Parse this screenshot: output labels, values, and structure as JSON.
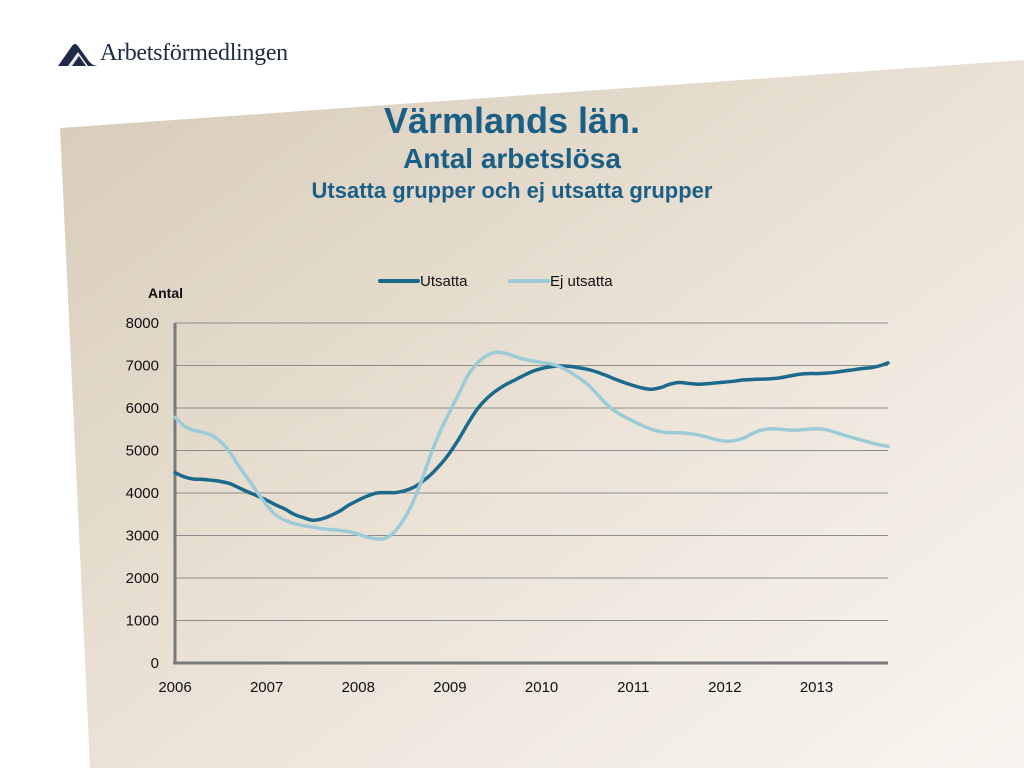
{
  "brand": {
    "logo_text": "Arbetsförmedlingen",
    "logo_color": "#1f2a44"
  },
  "titles": {
    "line1": "Värmlands län.",
    "line2": "Antal arbetslösa",
    "line3": "Utsatta grupper och ej utsatta grupper",
    "color": "#1a5f86"
  },
  "chart_data": {
    "type": "line",
    "title": "",
    "xlabel": "",
    "ylabel": "Antal",
    "ylim": [
      0,
      8000
    ],
    "xlim": [
      2006,
      2013.78
    ],
    "yticks": [
      0,
      1000,
      2000,
      3000,
      4000,
      5000,
      6000,
      7000,
      8000
    ],
    "xticks": [
      "2006",
      "2007",
      "2008",
      "2009",
      "2010",
      "2011",
      "2012",
      "2013"
    ],
    "grid": true,
    "legend_position": "top",
    "series": [
      {
        "name": "Utsatta",
        "color": "#1c6a8b",
        "x": [
          2006.0,
          2006.1,
          2006.2,
          2006.3,
          2006.4,
          2006.5,
          2006.6,
          2006.7,
          2006.8,
          2006.9,
          2007.0,
          2007.1,
          2007.2,
          2007.3,
          2007.4,
          2007.5,
          2007.6,
          2007.7,
          2007.8,
          2007.9,
          2008.0,
          2008.1,
          2008.2,
          2008.3,
          2008.4,
          2008.5,
          2008.6,
          2008.7,
          2008.8,
          2008.9,
          2009.0,
          2009.1,
          2009.2,
          2009.3,
          2009.4,
          2009.5,
          2009.6,
          2009.7,
          2009.8,
          2009.9,
          2010.0,
          2010.1,
          2010.2,
          2010.3,
          2010.4,
          2010.5,
          2010.6,
          2010.7,
          2010.8,
          2010.9,
          2011.0,
          2011.1,
          2011.2,
          2011.3,
          2011.4,
          2011.5,
          2011.6,
          2011.7,
          2011.8,
          2011.9,
          2012.0,
          2012.1,
          2012.2,
          2012.3,
          2012.4,
          2012.5,
          2012.6,
          2012.7,
          2012.8,
          2012.9,
          2013.0,
          2013.1,
          2013.2,
          2013.3,
          2013.4,
          2013.5,
          2013.6,
          2013.7,
          2013.78
        ],
        "values": [
          4480,
          4380,
          4330,
          4320,
          4300,
          4270,
          4220,
          4120,
          4020,
          3930,
          3830,
          3720,
          3620,
          3500,
          3420,
          3360,
          3390,
          3470,
          3580,
          3720,
          3830,
          3930,
          4000,
          4010,
          4010,
          4050,
          4130,
          4270,
          4450,
          4680,
          4950,
          5280,
          5650,
          5980,
          6220,
          6400,
          6540,
          6650,
          6760,
          6860,
          6930,
          6970,
          6990,
          6980,
          6950,
          6910,
          6850,
          6770,
          6680,
          6600,
          6530,
          6470,
          6440,
          6480,
          6560,
          6600,
          6580,
          6560,
          6570,
          6590,
          6610,
          6630,
          6660,
          6670,
          6680,
          6690,
          6710,
          6750,
          6790,
          6810,
          6810,
          6820,
          6840,
          6870,
          6900,
          6930,
          6950,
          7000,
          7060
        ]
      },
      {
        "name": "Ej utsatta",
        "color": "#9ccbd8",
        "x": [
          2006.0,
          2006.1,
          2006.2,
          2006.3,
          2006.4,
          2006.5,
          2006.6,
          2006.7,
          2006.8,
          2006.9,
          2007.0,
          2007.1,
          2007.2,
          2007.3,
          2007.4,
          2007.5,
          2007.6,
          2007.7,
          2007.8,
          2007.9,
          2008.0,
          2008.1,
          2008.2,
          2008.3,
          2008.4,
          2008.5,
          2008.6,
          2008.7,
          2008.8,
          2008.9,
          2009.0,
          2009.1,
          2009.2,
          2009.3,
          2009.4,
          2009.5,
          2009.6,
          2009.7,
          2009.8,
          2009.9,
          2010.0,
          2010.1,
          2010.2,
          2010.3,
          2010.4,
          2010.5,
          2010.6,
          2010.7,
          2010.8,
          2010.9,
          2011.0,
          2011.1,
          2011.2,
          2011.3,
          2011.4,
          2011.5,
          2011.6,
          2011.7,
          2011.8,
          2011.9,
          2012.0,
          2012.1,
          2012.2,
          2012.3,
          2012.4,
          2012.5,
          2012.6,
          2012.7,
          2012.8,
          2012.9,
          2013.0,
          2013.1,
          2013.2,
          2013.3,
          2013.4,
          2013.5,
          2013.6,
          2013.7,
          2013.78
        ],
        "values": [
          5780,
          5580,
          5480,
          5430,
          5360,
          5200,
          4950,
          4620,
          4320,
          4010,
          3720,
          3480,
          3360,
          3280,
          3230,
          3200,
          3160,
          3140,
          3120,
          3090,
          3030,
          2960,
          2920,
          2940,
          3100,
          3390,
          3800,
          4350,
          4960,
          5480,
          5920,
          6350,
          6780,
          7060,
          7230,
          7310,
          7290,
          7220,
          7150,
          7110,
          7070,
          7040,
          6970,
          6860,
          6720,
          6560,
          6340,
          6110,
          5930,
          5800,
          5690,
          5590,
          5500,
          5440,
          5420,
          5420,
          5400,
          5370,
          5320,
          5260,
          5220,
          5230,
          5290,
          5400,
          5480,
          5510,
          5500,
          5480,
          5480,
          5500,
          5510,
          5490,
          5430,
          5360,
          5300,
          5240,
          5180,
          5130,
          5100
        ]
      }
    ]
  }
}
